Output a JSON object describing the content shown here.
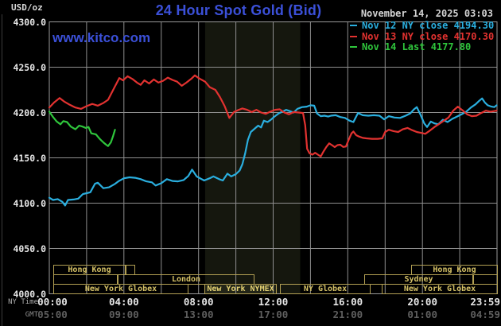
{
  "header": {
    "unit_label": "USD/oz",
    "title": "24 Hour Spot Gold (Bid)",
    "datetime": "November 14, 2025 03:03",
    "watermark": "www.kitco.com"
  },
  "legend": [
    {
      "label": "Nov 12 NY close 4194.30",
      "color": "#2aaede"
    },
    {
      "label": "Nov 13 NY close 4170.30",
      "color": "#e23230"
    },
    {
      "label": "Nov 14 Last 4177.80",
      "color": "#2fc63c"
    }
  ],
  "y_axis": {
    "ticks": [
      "4300.0",
      "4250.0",
      "4200.0",
      "4150.0",
      "4100.0",
      "4050.0",
      "4000.0"
    ]
  },
  "x_axis": {
    "ny_label": "NY Time",
    "gmt_label": "GMT",
    "tick_hours": [
      0,
      4,
      8,
      12,
      16,
      20,
      23.983
    ],
    "ny_times": [
      "00:00",
      "04:00",
      "08:00",
      "12:00",
      "16:00",
      "20:00",
      "23:59"
    ],
    "gmt_times": [
      "05:00",
      "09:00",
      "13:00",
      "17:00",
      "21:00",
      "01:00",
      "04:59"
    ]
  },
  "sessions": {
    "rows": [
      [
        {
          "label": "Hong Kong",
          "x1": 67,
          "x2": 158
        },
        {
          "label": "",
          "x1": 158,
          "x2": 170
        },
        {
          "label": "Hong Kong",
          "x1": 517,
          "x2": 626
        }
      ],
      [
        {
          "label": "",
          "x1": 67,
          "x2": 148
        },
        {
          "label": "London",
          "x1": 148,
          "x2": 320
        },
        {
          "label": "Sydney",
          "x1": 458,
          "x2": 595
        },
        {
          "label": "",
          "x1": 595,
          "x2": 626
        }
      ],
      [
        {
          "label": "New York Globex",
          "x1": 67,
          "x2": 237
        },
        {
          "label": "New York NYMEX",
          "x1": 257,
          "x2": 348,
          "highlight": true
        },
        {
          "label": "NY Globex",
          "x1": 352,
          "x2": 466
        },
        {
          "label": "New York Globex",
          "x1": 480,
          "x2": 626
        }
      ]
    ]
  },
  "colors": {
    "background": "#000000",
    "grid": "#8f8f8f",
    "border": "#9a9a9a",
    "band": "#15170e",
    "title_blue": "#3b50d8",
    "session_border": "#b3a054",
    "session_text": "#d6c267"
  },
  "chart_data": {
    "type": "line",
    "title": "24 Hour Spot Gold (Bid)",
    "ylabel": "USD/oz",
    "xlabel": "NY Time (hours 00:00-23:59)",
    "x_range": [
      0,
      24
    ],
    "y_range": [
      4000,
      4300
    ],
    "grid": {
      "x_step_hours": 2,
      "y_step": 50,
      "on": true
    },
    "highlight_band_hours": [
      8.35,
      13.45
    ],
    "legend_position": "top-right",
    "series": [
      {
        "name": "Nov 12",
        "color": "#2aaede",
        "points": [
          [
            0,
            4106
          ],
          [
            0.2,
            4103.5
          ],
          [
            0.45,
            4104.5
          ],
          [
            0.7,
            4101.5
          ],
          [
            0.85,
            4097.5
          ],
          [
            1.0,
            4103.5
          ],
          [
            1.3,
            4104
          ],
          [
            1.55,
            4105
          ],
          [
            1.8,
            4110
          ],
          [
            2.0,
            4111
          ],
          [
            2.2,
            4112
          ],
          [
            2.45,
            4121.5
          ],
          [
            2.6,
            4122.5
          ],
          [
            2.9,
            4116.5
          ],
          [
            3.2,
            4117.5
          ],
          [
            3.5,
            4121
          ],
          [
            3.7,
            4124
          ],
          [
            4.0,
            4127.5
          ],
          [
            4.3,
            4128.5
          ],
          [
            4.6,
            4128
          ],
          [
            4.9,
            4126.5
          ],
          [
            5.2,
            4124
          ],
          [
            5.5,
            4123
          ],
          [
            5.7,
            4119.5
          ],
          [
            6.0,
            4122
          ],
          [
            6.3,
            4126.5
          ],
          [
            6.6,
            4124.5
          ],
          [
            6.9,
            4124
          ],
          [
            7.2,
            4125.5
          ],
          [
            7.45,
            4130
          ],
          [
            7.65,
            4137
          ],
          [
            7.9,
            4129.5
          ],
          [
            8.3,
            4125
          ],
          [
            8.6,
            4127.5
          ],
          [
            8.8,
            4129.5
          ],
          [
            9.1,
            4126.5
          ],
          [
            9.3,
            4125
          ],
          [
            9.55,
            4132.5
          ],
          [
            9.75,
            4129.5
          ],
          [
            10.0,
            4132
          ],
          [
            10.2,
            4136
          ],
          [
            10.35,
            4143
          ],
          [
            10.5,
            4155
          ],
          [
            10.65,
            4170
          ],
          [
            10.8,
            4178.5
          ],
          [
            11.0,
            4182
          ],
          [
            11.2,
            4185.5
          ],
          [
            11.35,
            4183.5
          ],
          [
            11.5,
            4191
          ],
          [
            11.7,
            4189.5
          ],
          [
            11.9,
            4192.5
          ],
          [
            12.1,
            4196
          ],
          [
            12.3,
            4199
          ],
          [
            12.5,
            4201
          ],
          [
            12.7,
            4203
          ],
          [
            12.9,
            4201.5
          ],
          [
            13.1,
            4200
          ],
          [
            13.3,
            4204
          ],
          [
            13.55,
            4206
          ],
          [
            13.8,
            4206.5
          ],
          [
            14.0,
            4208
          ],
          [
            14.2,
            4207.5
          ],
          [
            14.35,
            4199
          ],
          [
            14.55,
            4196
          ],
          [
            14.75,
            4196.5
          ],
          [
            14.95,
            4195.5
          ],
          [
            15.1,
            4196.5
          ],
          [
            15.35,
            4197
          ],
          [
            15.6,
            4195
          ],
          [
            15.85,
            4194
          ],
          [
            16.1,
            4191
          ],
          [
            16.3,
            4189.5
          ],
          [
            16.55,
            4199.5
          ],
          [
            16.8,
            4197
          ],
          [
            17.1,
            4196.5
          ],
          [
            17.4,
            4197
          ],
          [
            17.7,
            4196.5
          ],
          [
            17.95,
            4192.5
          ],
          [
            18.2,
            4196
          ],
          [
            18.5,
            4194.5
          ],
          [
            18.8,
            4194
          ],
          [
            19.1,
            4196.5
          ],
          [
            19.35,
            4199
          ],
          [
            19.55,
            4203.5
          ],
          [
            19.7,
            4206
          ],
          [
            19.9,
            4197.5
          ],
          [
            20.1,
            4188
          ],
          [
            20.25,
            4184
          ],
          [
            20.45,
            4190
          ],
          [
            20.65,
            4188
          ],
          [
            20.85,
            4187
          ],
          [
            21.1,
            4192
          ],
          [
            21.35,
            4189.5
          ],
          [
            21.6,
            4193
          ],
          [
            21.8,
            4195
          ],
          [
            22.1,
            4198
          ],
          [
            22.35,
            4201
          ],
          [
            22.6,
            4205.5
          ],
          [
            22.85,
            4209
          ],
          [
            23.05,
            4213
          ],
          [
            23.2,
            4215.5
          ],
          [
            23.35,
            4211
          ],
          [
            23.5,
            4208
          ],
          [
            23.7,
            4206.5
          ],
          [
            23.85,
            4206
          ],
          [
            23.98,
            4208
          ]
        ]
      },
      {
        "name": "Nov 13",
        "color": "#e23230",
        "points": [
          [
            0,
            4205.5
          ],
          [
            0.25,
            4211
          ],
          [
            0.55,
            4216
          ],
          [
            0.8,
            4212
          ],
          [
            1.1,
            4208.5
          ],
          [
            1.4,
            4205.5
          ],
          [
            1.7,
            4204
          ],
          [
            2.0,
            4207
          ],
          [
            2.3,
            4209.5
          ],
          [
            2.6,
            4207.5
          ],
          [
            2.9,
            4210.5
          ],
          [
            3.15,
            4214
          ],
          [
            3.45,
            4226
          ],
          [
            3.75,
            4238
          ],
          [
            3.95,
            4235.5
          ],
          [
            4.2,
            4240
          ],
          [
            4.45,
            4237
          ],
          [
            4.7,
            4233
          ],
          [
            4.9,
            4230.5
          ],
          [
            5.1,
            4235.5
          ],
          [
            5.35,
            4232
          ],
          [
            5.6,
            4236.5
          ],
          [
            5.85,
            4233
          ],
          [
            6.1,
            4235
          ],
          [
            6.35,
            4238.5
          ],
          [
            6.6,
            4236
          ],
          [
            6.85,
            4234
          ],
          [
            7.1,
            4229.5
          ],
          [
            7.35,
            4233
          ],
          [
            7.6,
            4237
          ],
          [
            7.8,
            4241
          ],
          [
            8.05,
            4237.5
          ],
          [
            8.35,
            4234
          ],
          [
            8.6,
            4228
          ],
          [
            8.9,
            4225
          ],
          [
            9.15,
            4217
          ],
          [
            9.4,
            4207
          ],
          [
            9.65,
            4194
          ],
          [
            9.9,
            4200.5
          ],
          [
            10.1,
            4202.5
          ],
          [
            10.35,
            4204.5
          ],
          [
            10.6,
            4203
          ],
          [
            10.85,
            4200.5
          ],
          [
            11.1,
            4203
          ],
          [
            11.35,
            4200
          ],
          [
            11.6,
            4198.5
          ],
          [
            11.85,
            4201
          ],
          [
            12.1,
            4203
          ],
          [
            12.35,
            4203.5
          ],
          [
            12.6,
            4200
          ],
          [
            12.85,
            4198
          ],
          [
            13.1,
            4200.5
          ],
          [
            13.35,
            4200
          ],
          [
            13.6,
            4199.5
          ],
          [
            13.72,
            4186
          ],
          [
            13.82,
            4160
          ],
          [
            13.95,
            4155
          ],
          [
            14.1,
            4153.5
          ],
          [
            14.25,
            4155.5
          ],
          [
            14.4,
            4153.5
          ],
          [
            14.55,
            4151.5
          ],
          [
            14.7,
            4157
          ],
          [
            14.85,
            4162
          ],
          [
            15.0,
            4166
          ],
          [
            15.15,
            4164
          ],
          [
            15.3,
            4161.8
          ],
          [
            15.45,
            4164
          ],
          [
            15.6,
            4164.5
          ],
          [
            15.75,
            4162
          ],
          [
            15.9,
            4162.5
          ],
          [
            16.05,
            4170
          ],
          [
            16.2,
            4177
          ],
          [
            16.3,
            4179
          ],
          [
            16.45,
            4175
          ],
          [
            16.6,
            4173.5
          ],
          [
            16.8,
            4172
          ],
          [
            17.0,
            4171.5
          ],
          [
            17.3,
            4171
          ],
          [
            17.6,
            4171
          ],
          [
            17.85,
            4171.5
          ],
          [
            18.0,
            4178.5
          ],
          [
            18.2,
            4181
          ],
          [
            18.45,
            4179.5
          ],
          [
            18.7,
            4178.5
          ],
          [
            18.95,
            4181.5
          ],
          [
            19.2,
            4183
          ],
          [
            19.45,
            4180.5
          ],
          [
            19.7,
            4178.5
          ],
          [
            19.95,
            4177.5
          ],
          [
            20.15,
            4176.5
          ],
          [
            20.4,
            4180
          ],
          [
            20.65,
            4184
          ],
          [
            20.9,
            4187.5
          ],
          [
            21.15,
            4191
          ],
          [
            21.4,
            4194.5
          ],
          [
            21.65,
            4202
          ],
          [
            21.9,
            4206.5
          ],
          [
            22.15,
            4202.5
          ],
          [
            22.4,
            4198
          ],
          [
            22.65,
            4196
          ],
          [
            22.9,
            4196.5
          ],
          [
            23.15,
            4199.5
          ],
          [
            23.4,
            4202
          ],
          [
            23.65,
            4201
          ],
          [
            23.98,
            4202
          ]
        ]
      },
      {
        "name": "Nov 14",
        "color": "#2fc63c",
        "points": [
          [
            0,
            4201
          ],
          [
            0.2,
            4195
          ],
          [
            0.4,
            4190
          ],
          [
            0.6,
            4187
          ],
          [
            0.75,
            4190.5
          ],
          [
            0.95,
            4189.5
          ],
          [
            1.15,
            4184.5
          ],
          [
            1.4,
            4181.5
          ],
          [
            1.6,
            4185.5
          ],
          [
            1.78,
            4184.5
          ],
          [
            1.95,
            4183
          ],
          [
            2.1,
            4184
          ],
          [
            2.25,
            4177
          ],
          [
            2.5,
            4176
          ],
          [
            2.7,
            4171
          ],
          [
            2.9,
            4167
          ],
          [
            3.05,
            4164.5
          ],
          [
            3.15,
            4163
          ],
          [
            3.3,
            4167
          ],
          [
            3.42,
            4174
          ],
          [
            3.52,
            4181
          ]
        ]
      }
    ]
  }
}
